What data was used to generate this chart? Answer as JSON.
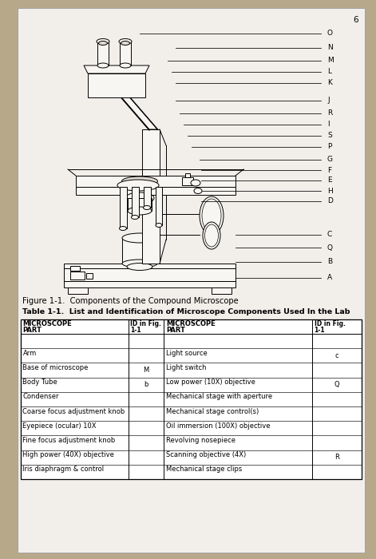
{
  "background_color": "#b8a88a",
  "page_color": "#f2eeea",
  "page_number": "6",
  "figure_caption": "Figure 1-1.  Components of the Compound Microscope",
  "table_title": "Table 1-1.  List and Identification of Microscope Components Used In the Lab",
  "left_parts": [
    "Arm",
    "Base of microscope",
    "Body Tube",
    "Condenser",
    "Coarse focus adjustment knob",
    "Eyepiece (ocular) 10X",
    "Fine focus adjustment knob",
    "High power (40X) objective",
    "Iris diaphragm & control"
  ],
  "left_ids": [
    "",
    "M",
    "b",
    "",
    "",
    "",
    "",
    "",
    ""
  ],
  "right_parts": [
    "Light source",
    "Light switch",
    "Low power (10X) objective",
    "Mechanical stage with aperture",
    "Mechanical stage control(s)",
    "Oil immersion (100X) objective",
    "Revolving nosepiece",
    "Scanning objective (4X)",
    "Mechanical stage clips"
  ],
  "right_ids": [
    "c",
    "",
    "Q",
    "",
    "",
    "",
    "",
    "R",
    ""
  ],
  "labels": [
    "O",
    "N",
    "M",
    "L",
    "K",
    "J",
    "R",
    "I",
    "S",
    "P",
    "G",
    "F",
    "E",
    "H",
    "D",
    "C",
    "Q",
    "B",
    "A"
  ]
}
